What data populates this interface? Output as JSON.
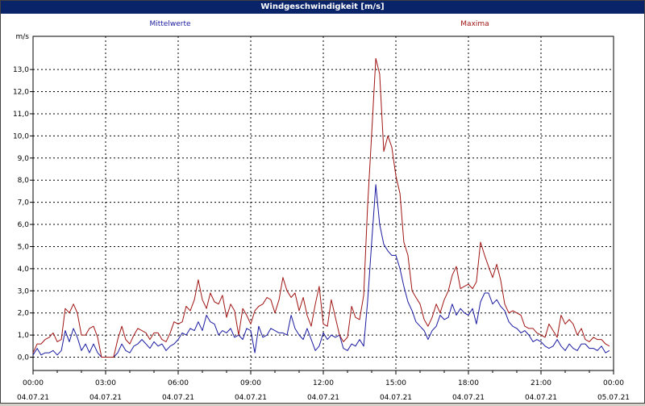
{
  "window": {
    "title": "Windgeschwindigkeit [m/s]"
  },
  "chart_data": {
    "type": "line",
    "title": "Windgeschwindigkeit [m/s]",
    "ylabel": "m/s",
    "ylim": [
      -0.6,
      14.5
    ],
    "yticks": [
      "0,0",
      "1,0",
      "2,0",
      "3,0",
      "4,0",
      "5,0",
      "6,0",
      "7,0",
      "8,0",
      "9,0",
      "10,0",
      "11,0",
      "12,0",
      "13,0"
    ],
    "xlim": [
      0,
      24
    ],
    "xticks": [
      {
        "time": "00:00",
        "date": "04.07.21"
      },
      {
        "time": "03:00",
        "date": "04.07.21"
      },
      {
        "time": "06:00",
        "date": "04.07.21"
      },
      {
        "time": "09:00",
        "date": "04.07.21"
      },
      {
        "time": "12:00",
        "date": "04.07.21"
      },
      {
        "time": "15:00",
        "date": "04.07.21"
      },
      {
        "time": "18:00",
        "date": "04.07.21"
      },
      {
        "time": "21:00",
        "date": "04.07.21"
      },
      {
        "time": "00:00",
        "date": "05.07.21"
      }
    ],
    "grid": true,
    "colors": {
      "mittelwerte": "#1a1aa0",
      "maxima": "#a01414"
    },
    "series": [
      {
        "name": "Mittelwerte",
        "x": [
          0,
          0.17,
          0.33,
          0.5,
          0.67,
          0.83,
          1,
          1.17,
          1.33,
          1.5,
          1.67,
          1.83,
          2,
          2.17,
          2.33,
          2.5,
          2.67,
          2.83,
          3,
          3.17,
          3.33,
          3.5,
          3.67,
          3.83,
          4,
          4.17,
          4.33,
          4.5,
          4.67,
          4.83,
          5,
          5.17,
          5.33,
          5.5,
          5.67,
          5.83,
          6,
          6.17,
          6.33,
          6.5,
          6.67,
          6.83,
          7,
          7.17,
          7.33,
          7.5,
          7.67,
          7.83,
          8,
          8.17,
          8.33,
          8.5,
          8.67,
          8.83,
          9,
          9.17,
          9.33,
          9.5,
          9.67,
          9.83,
          10,
          10.17,
          10.33,
          10.5,
          10.67,
          10.83,
          11,
          11.17,
          11.33,
          11.5,
          11.67,
          11.83,
          12,
          12.17,
          12.33,
          12.5,
          12.67,
          12.83,
          13,
          13.17,
          13.33,
          13.5,
          13.67,
          13.83,
          14,
          14.17,
          14.33,
          14.5,
          14.67,
          14.83,
          15,
          15.17,
          15.33,
          15.5,
          15.67,
          15.83,
          16,
          16.17,
          16.33,
          16.5,
          16.67,
          16.83,
          17,
          17.17,
          17.33,
          17.5,
          17.67,
          17.83,
          18,
          18.17,
          18.33,
          18.5,
          18.67,
          18.83,
          19,
          19.17,
          19.33,
          19.5,
          19.67,
          19.83,
          20,
          20.17,
          20.33,
          20.5,
          20.67,
          20.83,
          21,
          21.17,
          21.33,
          21.5,
          21.67,
          21.83,
          22,
          22.17,
          22.33,
          22.5,
          22.67,
          22.83,
          23,
          23.17,
          23.33,
          23.5,
          23.67,
          23.83
        ],
        "values": [
          0.1,
          0.4,
          0.1,
          0.2,
          0.2,
          0.3,
          0.1,
          0.3,
          1.2,
          0.7,
          1.3,
          0.9,
          0.3,
          0.6,
          0.2,
          0.6,
          0.2,
          0.0,
          0.0,
          0.0,
          0.0,
          0.2,
          0.6,
          0.3,
          0.2,
          0.5,
          0.6,
          0.8,
          0.6,
          0.4,
          0.7,
          0.5,
          0.6,
          0.3,
          0.5,
          0.6,
          0.8,
          1.1,
          1.0,
          1.3,
          1.2,
          1.6,
          1.2,
          1.9,
          1.6,
          1.5,
          1.0,
          1.2,
          1.1,
          1.3,
          0.9,
          1.0,
          0.8,
          1.3,
          1.2,
          0.2,
          1.4,
          0.9,
          1.0,
          1.3,
          1.2,
          1.1,
          1.1,
          1.0,
          1.9,
          1.3,
          1.0,
          0.8,
          1.3,
          0.8,
          0.3,
          0.5,
          1.1,
          0.8,
          1.0,
          0.9,
          1.0,
          0.4,
          0.3,
          0.6,
          0.5,
          0.8,
          0.5,
          2.5,
          5.2,
          7.8,
          6.0,
          5.1,
          4.8,
          4.6,
          4.6,
          4.0,
          3.2,
          2.5,
          2.1,
          1.6,
          1.4,
          1.2,
          0.8,
          1.2,
          1.4,
          1.9,
          1.7,
          1.8,
          2.4,
          1.9,
          2.2,
          2.0,
          1.9,
          2.2,
          1.5,
          2.5,
          2.9,
          2.9,
          2.4,
          2.6,
          2.3,
          2.1,
          1.6,
          1.4,
          1.3,
          1.1,
          1.2,
          1.0,
          0.7,
          0.8,
          0.7,
          0.5,
          0.4,
          0.5,
          0.8,
          0.5,
          0.3,
          0.6,
          0.4,
          0.3,
          0.6,
          0.6,
          0.4,
          0.4,
          0.3,
          0.5,
          0.2,
          0.3
        ]
      },
      {
        "name": "Maxima",
        "x": [
          0,
          0.17,
          0.33,
          0.5,
          0.67,
          0.83,
          1,
          1.17,
          1.33,
          1.5,
          1.67,
          1.83,
          2,
          2.17,
          2.33,
          2.5,
          2.67,
          2.83,
          3,
          3.17,
          3.33,
          3.5,
          3.67,
          3.83,
          4,
          4.17,
          4.33,
          4.5,
          4.67,
          4.83,
          5,
          5.17,
          5.33,
          5.5,
          5.67,
          5.83,
          6,
          6.17,
          6.33,
          6.5,
          6.67,
          6.83,
          7,
          7.17,
          7.33,
          7.5,
          7.67,
          7.83,
          8,
          8.17,
          8.33,
          8.5,
          8.67,
          8.83,
          9,
          9.17,
          9.33,
          9.5,
          9.67,
          9.83,
          10,
          10.17,
          10.33,
          10.5,
          10.67,
          10.83,
          11,
          11.17,
          11.33,
          11.5,
          11.67,
          11.83,
          12,
          12.17,
          12.33,
          12.5,
          12.67,
          12.83,
          13,
          13.17,
          13.33,
          13.5,
          13.67,
          13.83,
          14,
          14.17,
          14.33,
          14.5,
          14.67,
          14.83,
          15,
          15.17,
          15.33,
          15.5,
          15.67,
          15.83,
          16,
          16.17,
          16.33,
          16.5,
          16.67,
          16.83,
          17,
          17.17,
          17.33,
          17.5,
          17.67,
          17.83,
          18,
          18.17,
          18.33,
          18.5,
          18.67,
          18.83,
          19,
          19.17,
          19.33,
          19.5,
          19.67,
          19.83,
          20,
          20.17,
          20.33,
          20.5,
          20.67,
          20.83,
          21,
          21.17,
          21.33,
          21.5,
          21.67,
          21.83,
          22,
          22.17,
          22.33,
          22.5,
          22.67,
          22.83,
          23,
          23.17,
          23.33,
          23.5,
          23.67,
          23.83
        ],
        "values": [
          0.2,
          0.6,
          0.6,
          0.8,
          0.9,
          1.1,
          0.7,
          0.8,
          2.2,
          2.0,
          2.4,
          2.0,
          1.0,
          1.0,
          1.3,
          1.4,
          0.9,
          0.0,
          0.0,
          0.0,
          0.0,
          0.8,
          1.4,
          0.8,
          0.6,
          1.0,
          1.3,
          1.2,
          1.1,
          0.8,
          1.1,
          1.1,
          0.8,
          0.7,
          1.1,
          1.6,
          1.5,
          1.6,
          2.3,
          2.1,
          2.6,
          3.5,
          2.6,
          2.2,
          2.9,
          2.5,
          2.4,
          2.8,
          1.8,
          2.4,
          2.1,
          1.0,
          2.2,
          1.9,
          1.5,
          2.1,
          2.3,
          2.4,
          2.7,
          2.6,
          2.0,
          2.6,
          3.6,
          3.0,
          2.7,
          2.9,
          2.1,
          2.7,
          1.9,
          1.4,
          2.4,
          3.2,
          1.5,
          1.4,
          2.6,
          1.8,
          1.0,
          0.7,
          0.9,
          2.3,
          1.8,
          1.7,
          2.8,
          6.8,
          10.1,
          13.5,
          12.8,
          9.3,
          10.0,
          9.5,
          8.2,
          7.4,
          5.2,
          4.6,
          3.0,
          2.7,
          2.4,
          1.7,
          1.4,
          1.8,
          2.4,
          2.0,
          2.6,
          3.0,
          3.7,
          4.1,
          3.1,
          3.2,
          3.3,
          3.1,
          3.4,
          5.2,
          4.6,
          4.1,
          3.6,
          4.2,
          3.5,
          2.4,
          2.0,
          2.1,
          2.0,
          1.9,
          1.4,
          1.3,
          1.3,
          1.1,
          1.0,
          0.9,
          1.5,
          1.2,
          0.9,
          1.9,
          1.5,
          1.7,
          1.5,
          1.0,
          1.3,
          0.8,
          0.7,
          0.9,
          0.8,
          0.8,
          0.6,
          0.5
        ]
      }
    ]
  }
}
